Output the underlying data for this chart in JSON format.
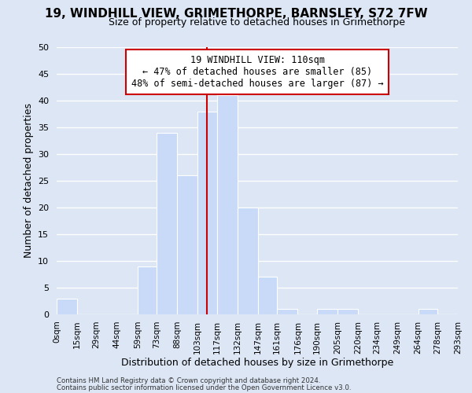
{
  "title": "19, WINDHILL VIEW, GRIMETHORPE, BARNSLEY, S72 7FW",
  "subtitle": "Size of property relative to detached houses in Grimethorpe",
  "xlabel": "Distribution of detached houses by size in Grimethorpe",
  "ylabel": "Number of detached properties",
  "footer_line1": "Contains HM Land Registry data © Crown copyright and database right 2024.",
  "footer_line2": "Contains public sector information licensed under the Open Government Licence v3.0.",
  "bin_edges": [
    0,
    15,
    29,
    44,
    59,
    73,
    88,
    103,
    117,
    132,
    147,
    161,
    176,
    190,
    205,
    220,
    234,
    249,
    264,
    278,
    293
  ],
  "bin_labels": [
    "0sqm",
    "15sqm",
    "29sqm",
    "44sqm",
    "59sqm",
    "73sqm",
    "88sqm",
    "103sqm",
    "117sqm",
    "132sqm",
    "147sqm",
    "161sqm",
    "176sqm",
    "190sqm",
    "205sqm",
    "220sqm",
    "234sqm",
    "249sqm",
    "264sqm",
    "278sqm",
    "293sqm"
  ],
  "counts": [
    3,
    0,
    0,
    0,
    9,
    34,
    26,
    38,
    41,
    20,
    7,
    1,
    0,
    1,
    1,
    0,
    0,
    0,
    1,
    0
  ],
  "bar_color": "#c9daf8",
  "bar_edge_color": "#ffffff",
  "bar_linewidth": 0.8,
  "grid_color": "#ffffff",
  "background_color": "#dce6f5",
  "property_line_x": 110,
  "property_line_color": "#cc0000",
  "ylim": [
    0,
    50
  ],
  "yticks": [
    0,
    5,
    10,
    15,
    20,
    25,
    30,
    35,
    40,
    45,
    50
  ],
  "annotation_title": "19 WINDHILL VIEW: 110sqm",
  "annotation_line1": "← 47% of detached houses are smaller (85)",
  "annotation_line2": "48% of semi-detached houses are larger (87) →",
  "annotation_box_edge_color": "#cc0000",
  "title_fontsize": 11,
  "subtitle_fontsize": 9,
  "ylabel_fontsize": 9,
  "xlabel_fontsize": 9
}
